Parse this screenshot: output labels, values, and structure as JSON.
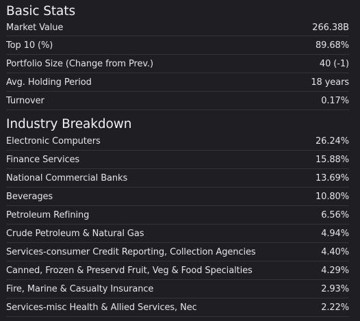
{
  "basic_stats": {
    "title": "Basic Stats",
    "rows": [
      {
        "label": "Market Value",
        "value": "266.38B"
      },
      {
        "label": "Top 10 (%)",
        "value": "89.68%"
      },
      {
        "label": "Portfolio Size (Change from Prev.)",
        "value": "40 (-1)"
      },
      {
        "label": "Avg. Holding Period",
        "value": "18 years"
      },
      {
        "label": "Turnover",
        "value": "0.17%"
      }
    ]
  },
  "industry_breakdown": {
    "title": "Industry Breakdown",
    "rows": [
      {
        "label": "Electronic Computers",
        "value": "26.24%"
      },
      {
        "label": "Finance Services",
        "value": "15.88%"
      },
      {
        "label": "National Commercial Banks",
        "value": "13.69%"
      },
      {
        "label": "Beverages",
        "value": "10.80%"
      },
      {
        "label": "Petroleum Refining",
        "value": "6.56%"
      },
      {
        "label": "Crude Petroleum & Natural Gas",
        "value": "4.94%"
      },
      {
        "label": "Services-consumer Credit Reporting, Collection Agencies",
        "value": "4.40%"
      },
      {
        "label": "Canned, Frozen & Preservd Fruit, Veg & Food Specialties",
        "value": "4.29%"
      },
      {
        "label": "Fire, Marine & Casualty Insurance",
        "value": "2.93%"
      },
      {
        "label": "Services-misc Health & Allied Services, Nec",
        "value": "2.22%"
      }
    ]
  }
}
